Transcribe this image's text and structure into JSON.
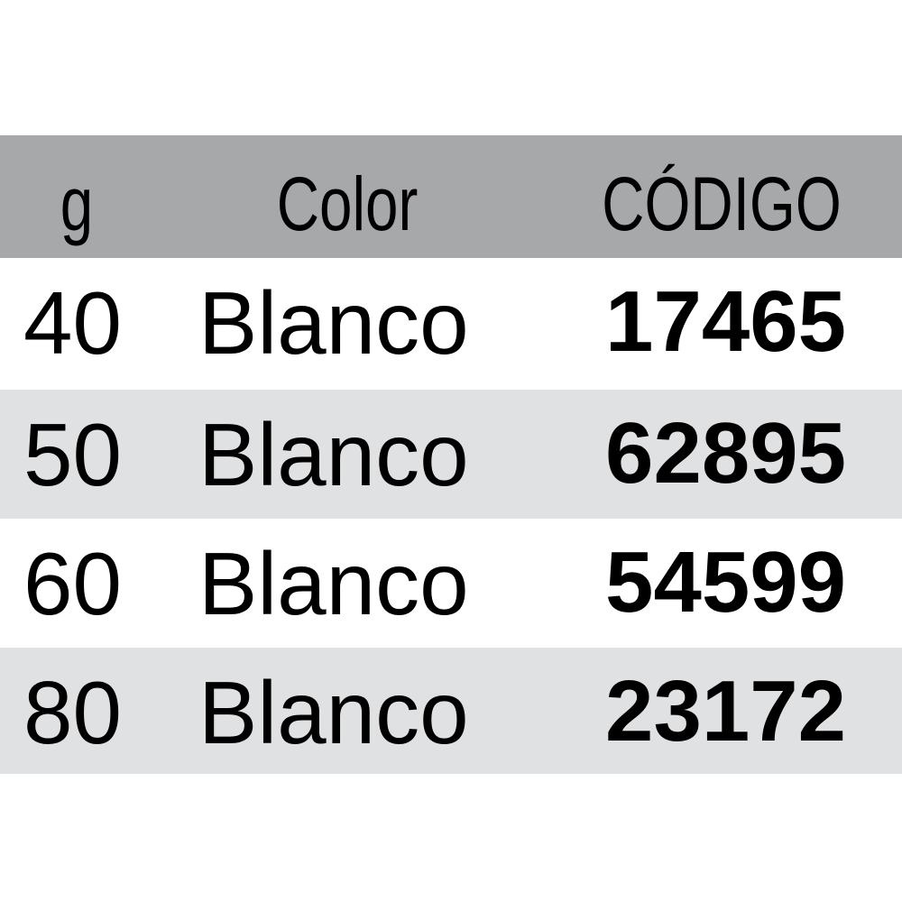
{
  "table": {
    "headers": [
      "g",
      "Color",
      "CÓDIGO"
    ],
    "rows": [
      {
        "g": "40",
        "color": "Blanco",
        "code": "17465"
      },
      {
        "g": "50",
        "color": "Blanco",
        "code": "62895"
      },
      {
        "g": "60",
        "color": "Blanco",
        "code": "54599"
      },
      {
        "g": "80",
        "color": "Blanco",
        "code": "23172"
      }
    ]
  },
  "colors": {
    "header_bg": "#a7a8aa",
    "alt_row_bg": "#e0e1e3",
    "row_bg": "#ffffff"
  }
}
